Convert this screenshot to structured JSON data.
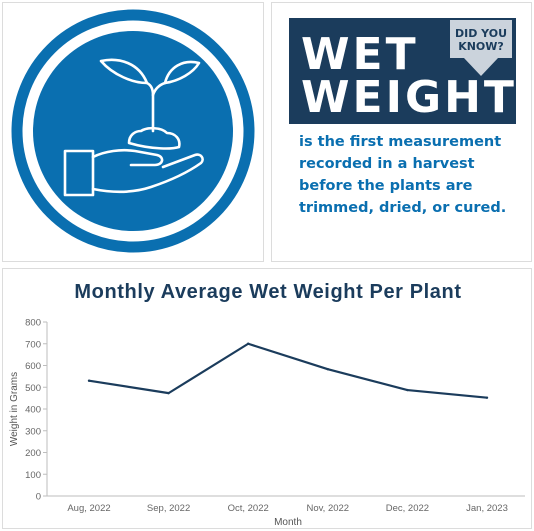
{
  "fact_card": {
    "badge_line_1": "DID YOU",
    "badge_line_2": "KNOW?",
    "title_line_1": "WET",
    "title_line_2": "WEIGHT",
    "body": "is the first measurement recorded in a harvest before the plants are trimmed, dried, or cured."
  },
  "colors": {
    "navy": "#1b3c5c",
    "blue": "#0a6fb0",
    "badge": "#cbd3dc"
  },
  "icons": {
    "main": "hand-holding-seedling-icon"
  },
  "chart_data": {
    "type": "line",
    "title": "Monthly Average Wet Weight Per Plant",
    "xlabel": "Month",
    "ylabel": "Weight in Grams",
    "categories": [
      "Aug, 2022",
      "Sep, 2022",
      "Oct, 2022",
      "Nov, 2022",
      "Dec, 2022",
      "Jan, 2023"
    ],
    "series": [
      {
        "values": [
          530,
          473,
          700,
          583,
          487,
          452
        ]
      }
    ],
    "ylim": [
      0,
      800
    ],
    "yticks": [
      0,
      100,
      200,
      300,
      400,
      500,
      600,
      700,
      800
    ],
    "grid": false,
    "line_color": "#1b3c5c"
  }
}
